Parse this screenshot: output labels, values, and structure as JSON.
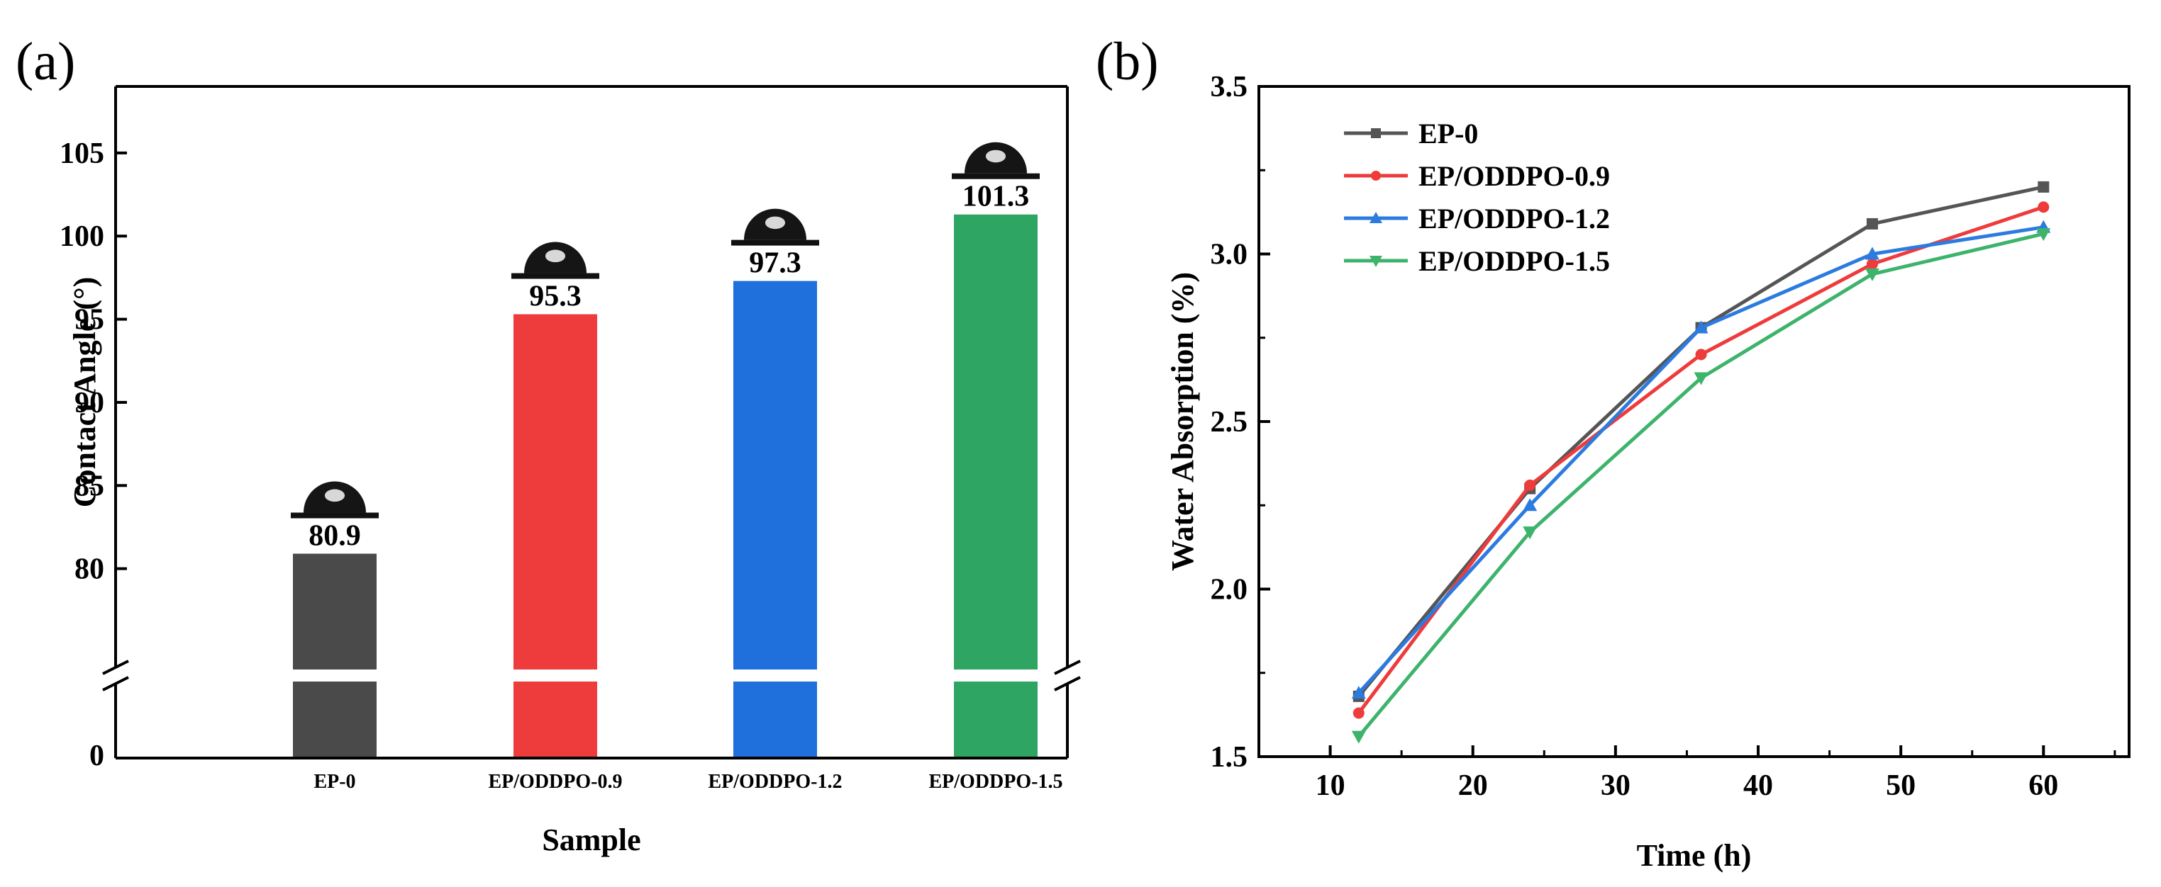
{
  "panels": {
    "a": {
      "label": "(a)"
    },
    "b": {
      "label": "(b)"
    }
  },
  "chart_data": [
    {
      "type": "bar",
      "panel": "(a)",
      "xlabel": "Sample",
      "ylabel": "Contact Angle (°)",
      "categories": [
        "EP-0",
        "EP/ODDPO-0.9",
        "EP/ODDPO-1.2",
        "EP/ODDPO-1.5"
      ],
      "values": [
        80.9,
        95.3,
        97.3,
        101.3
      ],
      "data_labels": [
        "80.9",
        "95.3",
        "97.3",
        "101.3"
      ],
      "colors": [
        "#4a4a4a",
        "#ee3b3b",
        "#1f6fdc",
        "#2fa563"
      ],
      "ylim": [
        75,
        109
      ],
      "y_axis_break": true,
      "yticks": [
        80,
        85,
        90,
        95,
        100,
        105
      ],
      "yticks_below_break": [
        0
      ],
      "droplet_icons": true,
      "grid": false,
      "legend": "none"
    },
    {
      "type": "line",
      "panel": "(b)",
      "xlabel": "Time (h)",
      "ylabel": "Water Absorption (%)",
      "x": [
        12,
        24,
        36,
        48,
        60
      ],
      "series": [
        {
          "name": "EP-0",
          "color": "#555555",
          "marker": "square",
          "values": [
            1.68,
            2.3,
            2.78,
            3.09,
            3.2
          ]
        },
        {
          "name": "EP/ODDPO-0.9",
          "color": "#ee3b3b",
          "marker": "circle",
          "values": [
            1.63,
            2.31,
            2.7,
            2.97,
            3.14
          ]
        },
        {
          "name": "EP/ODDPO-1.2",
          "color": "#2b7be0",
          "marker": "triangle-up",
          "values": [
            1.69,
            2.25,
            2.78,
            3.0,
            3.08
          ]
        },
        {
          "name": "EP/ODDPO-1.5",
          "color": "#3db36b",
          "marker": "triangle-down",
          "values": [
            1.56,
            2.17,
            2.63,
            2.94,
            3.06
          ]
        }
      ],
      "xlim": [
        5,
        66
      ],
      "ylim": [
        1.5,
        3.5
      ],
      "xticks": [
        10,
        20,
        30,
        40,
        50,
        60
      ],
      "yticks": [
        "1.5",
        "2.0",
        "2.5",
        "3.0",
        "3.5"
      ],
      "grid": false,
      "legend": "top-left"
    }
  ]
}
